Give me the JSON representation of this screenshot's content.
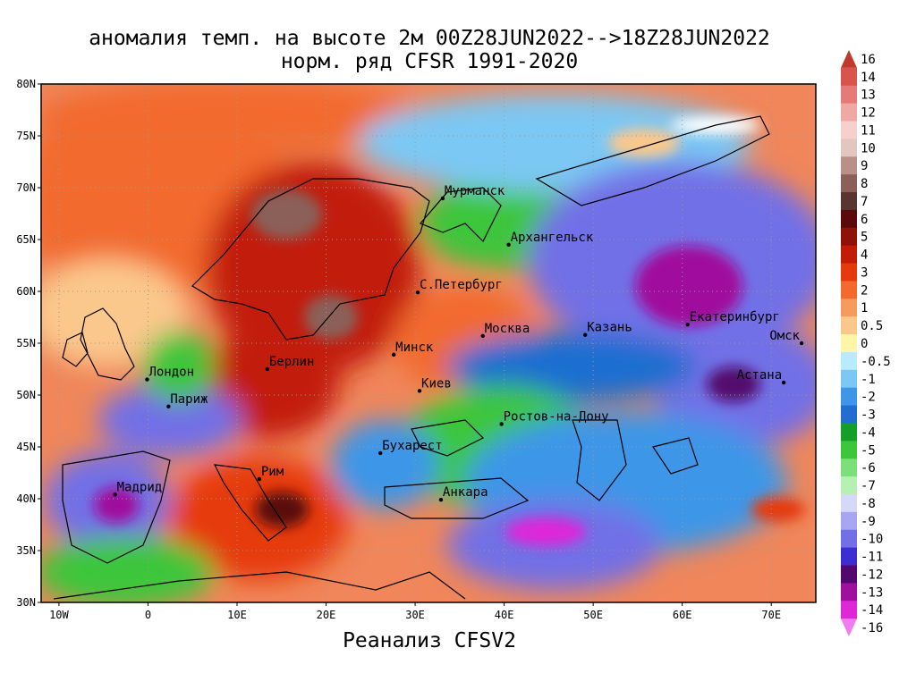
{
  "title_line1": "аномалия темп. на высоте 2м 00Z28JUN2022-->18Z28JUN2022",
  "title_line2": "норм. ряд CFSR 1991-2020",
  "footer": "Реанализ CFSV2",
  "map": {
    "lon_range": [
      -12,
      75
    ],
    "lat_range": [
      30,
      80
    ],
    "lat_ticks": [
      {
        "value": 80,
        "label": "80N"
      },
      {
        "value": 75,
        "label": "75N"
      },
      {
        "value": 70,
        "label": "70N"
      },
      {
        "value": 65,
        "label": "65N"
      },
      {
        "value": 60,
        "label": "60N"
      },
      {
        "value": 55,
        "label": "55N"
      },
      {
        "value": 50,
        "label": "50N"
      },
      {
        "value": 45,
        "label": "45N"
      },
      {
        "value": 40,
        "label": "40N"
      },
      {
        "value": 35,
        "label": "35N"
      },
      {
        "value": 30,
        "label": "30N"
      }
    ],
    "lon_ticks": [
      {
        "value": -10,
        "label": "10W"
      },
      {
        "value": 0,
        "label": "0"
      },
      {
        "value": 10,
        "label": "10E"
      },
      {
        "value": 20,
        "label": "20E"
      },
      {
        "value": 30,
        "label": "30E"
      },
      {
        "value": 40,
        "label": "40E"
      },
      {
        "value": 50,
        "label": "50E"
      },
      {
        "value": 60,
        "label": "60E"
      },
      {
        "value": 70,
        "label": "70E"
      }
    ],
    "cities": [
      {
        "name": "Мурманск",
        "lon": 33.1,
        "lat": 68.97
      },
      {
        "name": "Архангельск",
        "lon": 40.5,
        "lat": 64.5
      },
      {
        "name": "С.Петербург",
        "lon": 30.3,
        "lat": 59.9
      },
      {
        "name": "Москва",
        "lon": 37.6,
        "lat": 55.7
      },
      {
        "name": "Казань",
        "lon": 49.1,
        "lat": 55.8
      },
      {
        "name": "Екатеринбург",
        "lon": 60.6,
        "lat": 56.8
      },
      {
        "name": "Минск",
        "lon": 27.6,
        "lat": 53.9
      },
      {
        "name": "Берлин",
        "lon": 13.4,
        "lat": 52.5
      },
      {
        "name": "Лондон",
        "lon": -0.1,
        "lat": 51.5
      },
      {
        "name": "Париж",
        "lon": 2.3,
        "lat": 48.9
      },
      {
        "name": "Киев",
        "lon": 30.5,
        "lat": 50.4
      },
      {
        "name": "Омск",
        "lon": 73.4,
        "lat": 55.0
      },
      {
        "name": "Астана",
        "lon": 71.4,
        "lat": 51.2
      },
      {
        "name": "Ростов-на-Дону",
        "lon": 39.7,
        "lat": 47.2
      },
      {
        "name": "Бухарест",
        "lon": 26.1,
        "lat": 44.4
      },
      {
        "name": "Рим",
        "lon": 12.5,
        "lat": 41.9
      },
      {
        "name": "Мадрид",
        "lon": -3.7,
        "lat": 40.4
      },
      {
        "name": "Анкара",
        "lon": 32.9,
        "lat": 39.9
      }
    ]
  },
  "legend": {
    "items": [
      {
        "label": "16",
        "color": "#c0392b"
      },
      {
        "label": "14",
        "color": "#d9534f"
      },
      {
        "label": "13",
        "color": "#e57b77"
      },
      {
        "label": "12",
        "color": "#f0a8a4"
      },
      {
        "label": "11",
        "color": "#f6d0cc"
      },
      {
        "label": "10",
        "color": "#e2c6c0"
      },
      {
        "label": "9",
        "color": "#b89088"
      },
      {
        "label": "8",
        "color": "#8a6058"
      },
      {
        "label": "7",
        "color": "#5a3430"
      },
      {
        "label": "6",
        "color": "#5a0a08"
      },
      {
        "label": "5",
        "color": "#8e1208"
      },
      {
        "label": "4",
        "color": "#c21c08"
      },
      {
        "label": "3",
        "color": "#e63a0c"
      },
      {
        "label": "2",
        "color": "#f26a2e"
      },
      {
        "label": "1",
        "color": "#f79a5e"
      },
      {
        "label": "0.5",
        "color": "#fbc88c"
      },
      {
        "label": "0",
        "color": "#fff6a8"
      },
      {
        "label": "-0.5",
        "color": "#b8ecfc"
      },
      {
        "label": "-1",
        "color": "#7cc8f4"
      },
      {
        "label": "-2",
        "color": "#3e96e8"
      },
      {
        "label": "-3",
        "color": "#1f6ed0"
      },
      {
        "label": "-4",
        "color": "#14a028"
      },
      {
        "label": "-5",
        "color": "#3cc63a"
      },
      {
        "label": "-6",
        "color": "#7ce07a"
      },
      {
        "label": "-7",
        "color": "#b6f0b2"
      },
      {
        "label": "-8",
        "color": "#d6d8f8"
      },
      {
        "label": "-9",
        "color": "#a8a6f2"
      },
      {
        "label": "-10",
        "color": "#7270e6"
      },
      {
        "label": "-11",
        "color": "#3c2ed2"
      },
      {
        "label": "-12",
        "color": "#52086e"
      },
      {
        "label": "-13",
        "color": "#a0109e"
      },
      {
        "label": "-14",
        "color": "#de28d8"
      },
      {
        "label": "-16",
        "color": "#f07cf0"
      }
    ]
  }
}
